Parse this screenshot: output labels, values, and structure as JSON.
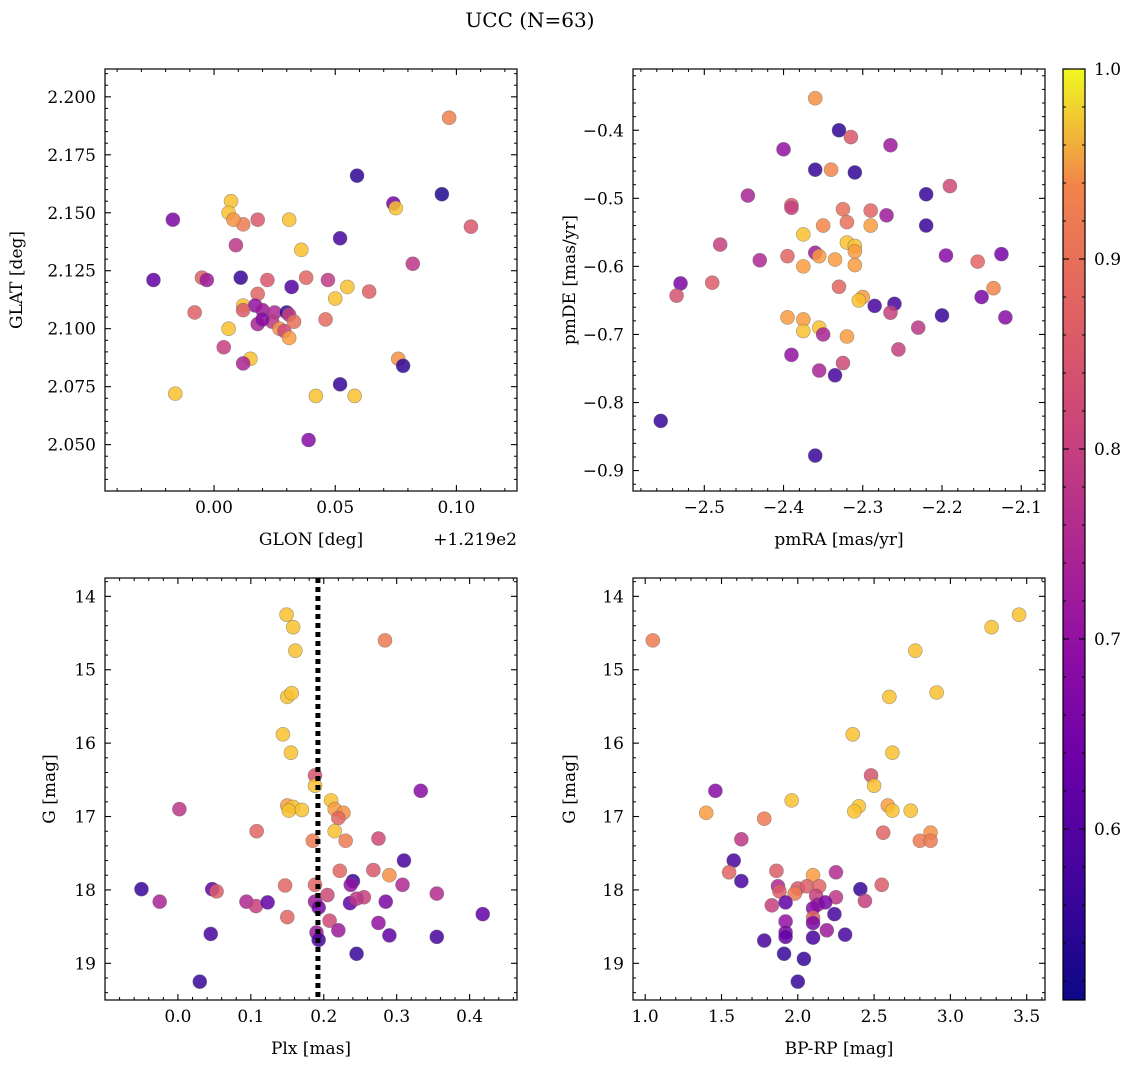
{
  "figure": {
    "title": "UCC (N=63)"
  },
  "colorbar": {
    "min": 0.51,
    "max": 1.0,
    "ticks": [
      0.6,
      0.7,
      0.8,
      0.9,
      1.0
    ],
    "tick_labels": [
      "0.6",
      "0.7",
      "0.8",
      "0.9",
      "1.0"
    ],
    "colormap": "plasma"
  },
  "chart_data": [
    {
      "type": "scatter",
      "id": "glon-glat",
      "title": "",
      "xlabel": "GLON [deg]",
      "ylabel": "GLAT [deg]",
      "x_offset_label": "+1.219e2",
      "xlim": [
        -0.045,
        0.125
      ],
      "ylim": [
        2.03,
        2.212
      ],
      "xticks": [
        0.0,
        0.05,
        0.1
      ],
      "xtick_labels": [
        "0.00",
        "0.05",
        "0.10"
      ],
      "yticks": [
        2.05,
        2.075,
        2.1,
        2.125,
        2.15,
        2.175,
        2.2
      ],
      "ytick_labels": [
        "2.050",
        "2.075",
        "2.100",
        "2.125",
        "2.150",
        "2.175",
        "2.200"
      ],
      "points": [
        [
          0.097,
          2.191,
          0.93
        ],
        [
          0.059,
          2.166,
          0.55
        ],
        [
          0.094,
          2.158,
          0.53
        ],
        [
          0.074,
          2.154,
          0.65
        ],
        [
          0.075,
          2.152,
          0.98
        ],
        [
          0.106,
          2.144,
          0.85
        ],
        [
          0.052,
          2.139,
          0.58
        ],
        [
          0.031,
          2.147,
          0.98
        ],
        [
          0.018,
          2.147,
          0.85
        ],
        [
          0.012,
          2.145,
          0.92
        ],
        [
          0.007,
          2.155,
          0.98
        ],
        [
          0.006,
          2.15,
          0.98
        ],
        [
          0.008,
          2.147,
          0.95
        ],
        [
          -0.017,
          2.147,
          0.66
        ],
        [
          0.009,
          2.136,
          0.78
        ],
        [
          0.036,
          2.134,
          0.98
        ],
        [
          -0.025,
          2.121,
          0.62
        ],
        [
          0.011,
          2.122,
          0.56
        ],
        [
          -0.005,
          2.122,
          0.87
        ],
        [
          -0.003,
          2.121,
          0.72
        ],
        [
          0.022,
          2.121,
          0.85
        ],
        [
          0.038,
          2.122,
          0.88
        ],
        [
          0.047,
          2.121,
          0.79
        ],
        [
          0.082,
          2.128,
          0.78
        ],
        [
          0.055,
          2.118,
          0.98
        ],
        [
          0.064,
          2.116,
          0.87
        ],
        [
          0.032,
          2.118,
          0.6
        ],
        [
          0.018,
          2.115,
          0.88
        ],
        [
          0.012,
          2.11,
          0.98
        ],
        [
          0.017,
          2.11,
          0.7
        ],
        [
          0.02,
          2.108,
          0.72
        ],
        [
          0.025,
          2.107,
          0.75
        ],
        [
          0.012,
          2.108,
          0.86
        ],
        [
          0.03,
          2.107,
          0.55
        ],
        [
          0.031,
          2.106,
          0.8
        ],
        [
          0.05,
          2.113,
          0.98
        ],
        [
          -0.008,
          2.107,
          0.87
        ],
        [
          0.046,
          2.104,
          0.89
        ],
        [
          0.018,
          2.102,
          0.74
        ],
        [
          0.024,
          2.103,
          0.78
        ],
        [
          0.027,
          2.1,
          0.95
        ],
        [
          0.029,
          2.099,
          0.82
        ],
        [
          0.031,
          2.096,
          0.96
        ],
        [
          0.006,
          2.1,
          0.98
        ],
        [
          0.004,
          2.092,
          0.8
        ],
        [
          0.015,
          2.087,
          0.98
        ],
        [
          0.012,
          2.085,
          0.74
        ],
        [
          0.076,
          2.087,
          0.95
        ],
        [
          0.078,
          2.084,
          0.55
        ],
        [
          -0.016,
          2.072,
          0.98
        ],
        [
          0.052,
          2.076,
          0.56
        ],
        [
          0.042,
          2.071,
          0.98
        ],
        [
          0.058,
          2.071,
          0.98
        ],
        [
          0.039,
          2.052,
          0.68
        ],
        [
          0.02,
          2.104,
          0.68
        ],
        [
          0.033,
          2.103,
          0.9
        ]
      ]
    },
    {
      "type": "scatter",
      "id": "pmra-pmde",
      "title": "",
      "xlabel": "pmRA [mas/yr]",
      "ylabel": "pmDE [mas/yr]",
      "xlim": [
        -2.59,
        -2.07
      ],
      "ylim": [
        -0.93,
        -0.31
      ],
      "xticks": [
        -2.5,
        -2.4,
        -2.3,
        -2.2,
        -2.1
      ],
      "xtick_labels": [
        "−2.5",
        "−2.4",
        "−2.3",
        "−2.2",
        "−2.1"
      ],
      "yticks": [
        -0.9,
        -0.8,
        -0.7,
        -0.6,
        -0.5,
        -0.4
      ],
      "ytick_labels": [
        "−0.9",
        "−0.8",
        "−0.7",
        "−0.6",
        "−0.5",
        "−0.4"
      ],
      "points": [
        [
          -2.36,
          -0.353,
          0.95
        ],
        [
          -2.33,
          -0.4,
          0.55
        ],
        [
          -2.315,
          -0.41,
          0.85
        ],
        [
          -2.265,
          -0.422,
          0.72
        ],
        [
          -2.4,
          -0.428,
          0.7
        ],
        [
          -2.36,
          -0.458,
          0.56
        ],
        [
          -2.34,
          -0.458,
          0.94
        ],
        [
          -2.31,
          -0.462,
          0.55
        ],
        [
          -2.19,
          -0.482,
          0.82
        ],
        [
          -2.22,
          -0.494,
          0.56
        ],
        [
          -2.445,
          -0.496,
          0.74
        ],
        [
          -2.39,
          -0.51,
          0.86
        ],
        [
          -2.39,
          -0.514,
          0.8
        ],
        [
          -2.325,
          -0.516,
          0.9
        ],
        [
          -2.29,
          -0.518,
          0.88
        ],
        [
          -2.27,
          -0.525,
          0.72
        ],
        [
          -2.35,
          -0.54,
          0.94
        ],
        [
          -2.32,
          -0.535,
          0.9
        ],
        [
          -2.29,
          -0.54,
          0.96
        ],
        [
          -2.22,
          -0.54,
          0.56
        ],
        [
          -2.375,
          -0.553,
          0.98
        ],
        [
          -2.32,
          -0.565,
          0.98
        ],
        [
          -2.31,
          -0.57,
          0.98
        ],
        [
          -2.48,
          -0.568,
          0.8
        ],
        [
          -2.36,
          -0.58,
          0.72
        ],
        [
          -2.355,
          -0.585,
          0.96
        ],
        [
          -2.31,
          -0.578,
          0.96
        ],
        [
          -2.395,
          -0.585,
          0.88
        ],
        [
          -2.43,
          -0.591,
          0.75
        ],
        [
          -2.335,
          -0.59,
          0.96
        ],
        [
          -2.31,
          -0.598,
          0.96
        ],
        [
          -2.195,
          -0.584,
          0.68
        ],
        [
          -2.155,
          -0.593,
          0.88
        ],
        [
          -2.125,
          -0.582,
          0.65
        ],
        [
          -2.375,
          -0.6,
          0.96
        ],
        [
          -2.53,
          -0.625,
          0.66
        ],
        [
          -2.49,
          -0.624,
          0.86
        ],
        [
          -2.535,
          -0.643,
          0.84
        ],
        [
          -2.33,
          -0.63,
          0.88
        ],
        [
          -2.3,
          -0.645,
          0.96
        ],
        [
          -2.305,
          -0.65,
          0.98
        ],
        [
          -2.285,
          -0.658,
          0.58
        ],
        [
          -2.26,
          -0.655,
          0.58
        ],
        [
          -2.265,
          -0.668,
          0.8
        ],
        [
          -2.15,
          -0.645,
          0.66
        ],
        [
          -2.135,
          -0.632,
          0.94
        ],
        [
          -2.395,
          -0.675,
          0.96
        ],
        [
          -2.375,
          -0.678,
          0.96
        ],
        [
          -2.355,
          -0.69,
          0.98
        ],
        [
          -2.375,
          -0.695,
          0.98
        ],
        [
          -2.35,
          -0.7,
          0.74
        ],
        [
          -2.32,
          -0.703,
          0.96
        ],
        [
          -2.2,
          -0.672,
          0.56
        ],
        [
          -2.12,
          -0.675,
          0.68
        ],
        [
          -2.23,
          -0.69,
          0.78
        ],
        [
          -2.255,
          -0.722,
          0.8
        ],
        [
          -2.39,
          -0.73,
          0.7
        ],
        [
          -2.325,
          -0.742,
          0.82
        ],
        [
          -2.355,
          -0.753,
          0.74
        ],
        [
          -2.335,
          -0.76,
          0.58
        ],
        [
          -2.555,
          -0.827,
          0.56
        ],
        [
          -2.36,
          -0.878,
          0.56
        ]
      ]
    },
    {
      "type": "scatter",
      "id": "plx-g",
      "title": "",
      "xlabel": "Plx [mas]",
      "ylabel": "G [mag]",
      "xlim": [
        -0.1,
        0.465
      ],
      "ylim": [
        19.5,
        13.75
      ],
      "xticks": [
        0.0,
        0.1,
        0.2,
        0.3,
        0.4
      ],
      "xtick_labels": [
        "0.0",
        "0.1",
        "0.2",
        "0.3",
        "0.4"
      ],
      "yticks": [
        14,
        15,
        16,
        17,
        18,
        19
      ],
      "ytick_labels": [
        "14",
        "15",
        "16",
        "17",
        "18",
        "19"
      ],
      "reference_line": {
        "x": 0.192,
        "style": "dotted"
      },
      "points": [
        [
          0.149,
          14.25,
          0.98
        ],
        [
          0.158,
          14.42,
          0.98
        ],
        [
          0.284,
          14.6,
          0.92
        ],
        [
          0.161,
          14.74,
          0.98
        ],
        [
          0.15,
          15.37,
          0.98
        ],
        [
          0.156,
          15.32,
          0.98
        ],
        [
          0.144,
          15.88,
          0.98
        ],
        [
          0.155,
          16.13,
          0.98
        ],
        [
          0.188,
          16.44,
          0.84
        ],
        [
          0.188,
          16.58,
          0.98
        ],
        [
          0.333,
          16.65,
          0.68
        ],
        [
          0.21,
          16.78,
          0.98
        ],
        [
          0.15,
          16.85,
          0.96
        ],
        [
          0.158,
          16.87,
          0.98
        ],
        [
          0.152,
          16.92,
          0.98
        ],
        [
          0.17,
          16.91,
          0.98
        ],
        [
          0.002,
          16.9,
          0.78
        ],
        [
          0.215,
          16.9,
          0.96
        ],
        [
          0.227,
          16.95,
          0.95
        ],
        [
          0.22,
          17.02,
          0.88
        ],
        [
          0.108,
          17.2,
          0.88
        ],
        [
          0.215,
          17.2,
          0.98
        ],
        [
          0.275,
          17.3,
          0.82
        ],
        [
          0.185,
          17.33,
          0.92
        ],
        [
          0.23,
          17.33,
          0.92
        ],
        [
          0.31,
          17.6,
          0.58
        ],
        [
          0.222,
          17.74,
          0.88
        ],
        [
          0.268,
          17.73,
          0.85
        ],
        [
          0.29,
          17.8,
          0.95
        ],
        [
          0.24,
          17.88,
          0.56
        ],
        [
          0.147,
          17.94,
          0.88
        ],
        [
          0.188,
          17.93,
          0.88
        ],
        [
          0.308,
          17.93,
          0.75
        ],
        [
          0.237,
          17.93,
          0.7
        ],
        [
          -0.05,
          17.99,
          0.56
        ],
        [
          0.047,
          17.99,
          0.62
        ],
        [
          0.053,
          18.02,
          0.86
        ],
        [
          0.205,
          18.07,
          0.82
        ],
        [
          0.255,
          18.1,
          0.8
        ],
        [
          0.355,
          18.05,
          0.76
        ],
        [
          -0.025,
          18.16,
          0.74
        ],
        [
          0.094,
          18.16,
          0.75
        ],
        [
          0.107,
          18.22,
          0.8
        ],
        [
          0.123,
          18.17,
          0.62
        ],
        [
          0.188,
          18.16,
          0.72
        ],
        [
          0.193,
          18.24,
          0.65
        ],
        [
          0.236,
          18.18,
          0.62
        ],
        [
          0.245,
          18.12,
          0.78
        ],
        [
          0.285,
          18.16,
          0.66
        ],
        [
          0.15,
          18.37,
          0.88
        ],
        [
          0.208,
          18.42,
          0.82
        ],
        [
          0.418,
          18.33,
          0.62
        ],
        [
          0.275,
          18.45,
          0.7
        ],
        [
          0.22,
          18.55,
          0.72
        ],
        [
          0.19,
          18.58,
          0.72
        ],
        [
          0.045,
          18.6,
          0.58
        ],
        [
          0.29,
          18.62,
          0.62
        ],
        [
          0.193,
          18.68,
          0.58
        ],
        [
          0.355,
          18.64,
          0.58
        ],
        [
          0.245,
          18.87,
          0.56
        ],
        [
          0.03,
          19.25,
          0.56
        ]
      ]
    },
    {
      "type": "scatter",
      "id": "bprp-g",
      "title": "",
      "xlabel": "BP-RP [mag]",
      "ylabel": "G [mag]",
      "xlim": [
        0.92,
        3.62
      ],
      "ylim": [
        19.5,
        13.75
      ],
      "xticks": [
        1.0,
        1.5,
        2.0,
        2.5,
        3.0,
        3.5
      ],
      "xtick_labels": [
        "1.0",
        "1.5",
        "2.0",
        "2.5",
        "3.0",
        "3.5"
      ],
      "yticks": [
        14,
        15,
        16,
        17,
        18,
        19
      ],
      "ytick_labels": [
        "14",
        "15",
        "16",
        "17",
        "18",
        "19"
      ],
      "points": [
        [
          3.45,
          14.25,
          0.98
        ],
        [
          3.27,
          14.42,
          0.98
        ],
        [
          1.05,
          14.6,
          0.92
        ],
        [
          2.77,
          14.74,
          0.98
        ],
        [
          2.91,
          15.31,
          0.98
        ],
        [
          2.6,
          15.37,
          0.98
        ],
        [
          2.36,
          15.88,
          0.98
        ],
        [
          2.62,
          16.13,
          0.98
        ],
        [
          2.48,
          16.44,
          0.84
        ],
        [
          2.5,
          16.58,
          0.98
        ],
        [
          1.46,
          16.65,
          0.68
        ],
        [
          1.96,
          16.78,
          0.98
        ],
        [
          2.4,
          16.86,
          0.98
        ],
        [
          2.59,
          16.85,
          0.96
        ],
        [
          2.62,
          16.92,
          0.98
        ],
        [
          2.37,
          16.93,
          0.98
        ],
        [
          2.74,
          16.92,
          0.98
        ],
        [
          1.4,
          16.95,
          0.96
        ],
        [
          1.78,
          17.03,
          0.92
        ],
        [
          2.87,
          17.22,
          0.95
        ],
        [
          2.56,
          17.22,
          0.88
        ],
        [
          1.63,
          17.31,
          0.78
        ],
        [
          2.8,
          17.33,
          0.92
        ],
        [
          2.87,
          17.33,
          0.92
        ],
        [
          1.58,
          17.6,
          0.58
        ],
        [
          1.55,
          17.76,
          0.88
        ],
        [
          1.86,
          17.74,
          0.86
        ],
        [
          2.25,
          17.76,
          0.76
        ],
        [
          2.1,
          17.8,
          0.96
        ],
        [
          1.63,
          17.88,
          0.58
        ],
        [
          1.87,
          17.95,
          0.75
        ],
        [
          2.0,
          17.98,
          0.85
        ],
        [
          2.06,
          17.95,
          0.86
        ],
        [
          2.14,
          17.95,
          0.88
        ],
        [
          2.55,
          17.93,
          0.86
        ],
        [
          2.41,
          17.99,
          0.56
        ],
        [
          1.88,
          18.02,
          0.86
        ],
        [
          1.98,
          18.05,
          0.92
        ],
        [
          2.12,
          18.08,
          0.8
        ],
        [
          2.25,
          18.1,
          0.78
        ],
        [
          2.44,
          18.15,
          0.8
        ],
        [
          1.83,
          18.21,
          0.8
        ],
        [
          1.92,
          18.17,
          0.62
        ],
        [
          2.13,
          18.2,
          0.72
        ],
        [
          2.18,
          18.17,
          0.66
        ],
        [
          2.1,
          18.25,
          0.68
        ],
        [
          2.24,
          18.33,
          0.58
        ],
        [
          2.1,
          18.38,
          0.88
        ],
        [
          1.92,
          18.43,
          0.7
        ],
        [
          2.1,
          18.45,
          0.66
        ],
        [
          2.19,
          18.55,
          0.72
        ],
        [
          1.92,
          18.58,
          0.66
        ],
        [
          1.92,
          18.64,
          0.62
        ],
        [
          2.1,
          18.65,
          0.58
        ],
        [
          2.31,
          18.61,
          0.58
        ],
        [
          1.78,
          18.69,
          0.58
        ],
        [
          1.91,
          18.87,
          0.56
        ],
        [
          2.04,
          18.94,
          0.56
        ],
        [
          2.0,
          19.25,
          0.56
        ]
      ]
    }
  ]
}
